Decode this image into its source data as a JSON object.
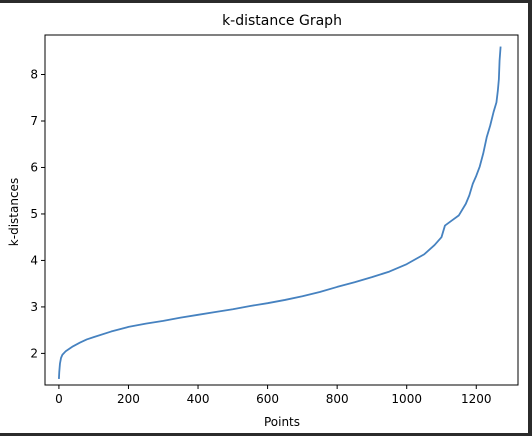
{
  "chart_data": {
    "type": "line",
    "title": "k-distance Graph",
    "xlabel": "Points",
    "ylabel": "k-distances",
    "xlim": [
      -40,
      1320
    ],
    "ylim": [
      1.32,
      8.85
    ],
    "xticks": [
      0,
      200,
      400,
      600,
      800,
      1000,
      1200
    ],
    "yticks": [
      2,
      3,
      4,
      5,
      6,
      7,
      8
    ],
    "grid": false,
    "line_color": "#4682c0",
    "series": [
      {
        "x": [
          0,
          1,
          3,
          6,
          10,
          20,
          40,
          60,
          80,
          100,
          150,
          200,
          250,
          300,
          350,
          400,
          450,
          500,
          550,
          600,
          650,
          700,
          750,
          800,
          850,
          900,
          950,
          1000,
          1050,
          1080,
          1100,
          1110,
          1130,
          1150,
          1170,
          1180,
          1190,
          1200,
          1210,
          1220,
          1230,
          1240,
          1250,
          1258,
          1262,
          1265,
          1267,
          1270
        ],
        "values": [
          1.45,
          1.6,
          1.78,
          1.9,
          1.97,
          2.05,
          2.15,
          2.23,
          2.3,
          2.35,
          2.47,
          2.57,
          2.64,
          2.7,
          2.77,
          2.83,
          2.89,
          2.95,
          3.02,
          3.08,
          3.15,
          3.23,
          3.32,
          3.43,
          3.53,
          3.64,
          3.76,
          3.92,
          4.13,
          4.33,
          4.5,
          4.75,
          4.86,
          4.97,
          5.22,
          5.4,
          5.65,
          5.82,
          6.02,
          6.3,
          6.65,
          6.9,
          7.2,
          7.4,
          7.65,
          7.9,
          8.3,
          8.6
        ]
      }
    ]
  }
}
